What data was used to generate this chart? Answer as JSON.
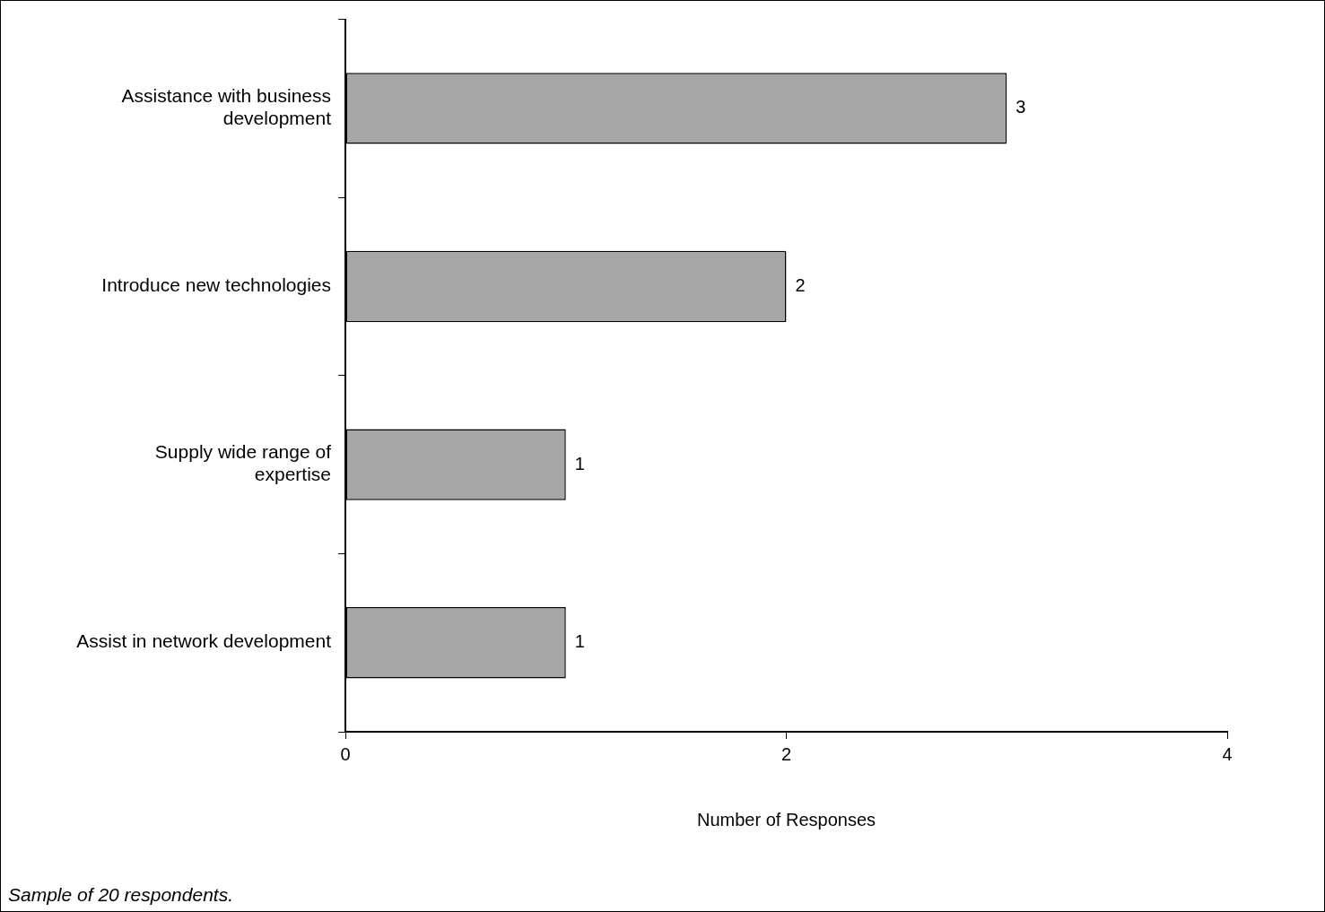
{
  "chart_data": {
    "type": "bar",
    "orientation": "horizontal",
    "categories": [
      "Assistance with business development",
      "Introduce new technologies",
      "Supply wide range of expertise",
      "Assist in network development"
    ],
    "values": [
      3,
      2,
      1,
      1
    ],
    "color": "#a6a6a6",
    "xlim": [
      0,
      4
    ],
    "xticks": [
      0,
      2,
      4
    ],
    "xlabel": "Number of Responses",
    "grid": false,
    "legend": false,
    "data_labels": true,
    "annotations": [
      "Sample of 20 respondents."
    ]
  }
}
